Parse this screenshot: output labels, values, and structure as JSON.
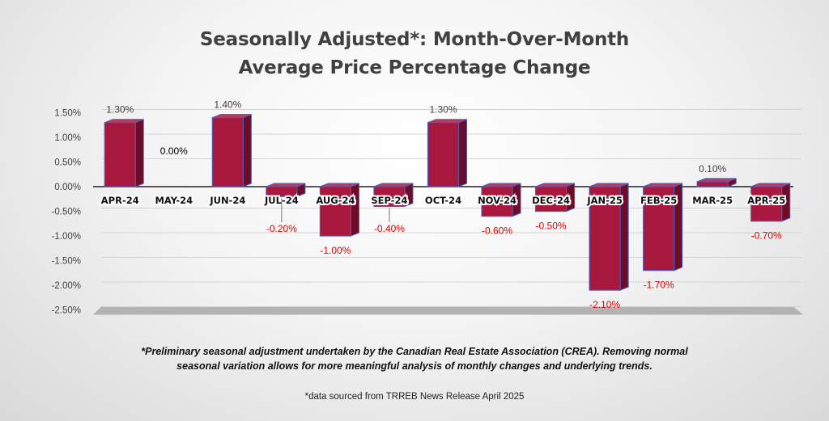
{
  "chart_data": {
    "type": "bar",
    "title": "Seasonally Adjusted*:  Month-Over-Month",
    "subtitle": "Average Price Percentage Change",
    "categories": [
      "APR-24",
      "MAY-24",
      "JUN-24",
      "JUL-24",
      "AUG-24",
      "SEP-24",
      "OCT-24",
      "NOV-24",
      "DEC-24",
      "JAN-25",
      "FEB-25",
      "MAR-25",
      "APR-25"
    ],
    "values": [
      1.3,
      0.0,
      1.4,
      -0.2,
      -1.0,
      -0.4,
      1.3,
      -0.6,
      -0.5,
      -2.1,
      -1.7,
      0.1,
      -0.7
    ],
    "data_labels": [
      "1.30%",
      "0.00%",
      "1.40%",
      "-0.20%",
      "-1.00%",
      "-0.40%",
      "1.30%",
      "-0.60%",
      "-0.50%",
      "-2.10%",
      "-1.70%",
      "0.10%",
      "-0.70%"
    ],
    "y_ticks": [
      1.5,
      1.0,
      0.5,
      0.0,
      -0.5,
      -1.0,
      -1.5,
      -2.0,
      -2.5
    ],
    "y_tick_labels": [
      "1.50%",
      "1.00%",
      "0.50%",
      "0.00%",
      "-0.50%",
      "-1.00%",
      "-1.50%",
      "-2.00%",
      "-2.50%"
    ],
    "ylim": [
      -2.5,
      1.5
    ],
    "grid": true,
    "xlabel": "",
    "ylabel": "",
    "colors": {
      "bar_front": "#a8183c",
      "bar_top": "#c0395a",
      "bar_side": "#6e0c28",
      "bar_outline": "#4a5bb5",
      "positive_label": "#404040",
      "negative_label": "#e00000",
      "zero_label": "#000000",
      "floor": "#b3b3b3"
    }
  },
  "footnote": {
    "line1": "*Preliminary seasonal adjustment undertaken by the Canadian Real Estate Association (CREA).  Removing normal",
    "line2": "seasonal variation allows for more meaningful analysis of monthly changes and underlying trends."
  },
  "source": "*data sourced from TRREB News Release April 2025"
}
